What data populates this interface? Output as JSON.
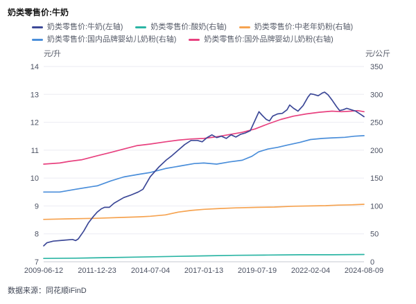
{
  "title": "奶类零售价:牛奶",
  "source": "数据来源：同花顺iFinD",
  "chart_data": {
    "type": "line",
    "title": "奶类零售价:牛奶",
    "grid": true,
    "legend_position": "top",
    "points_format": "each point is [t, value]; t is the fractional position along the time axis from 2009-06-12 (t=0) to 2024-08-09 (t=1); value is in the unit of that series' axis",
    "x_axis": {
      "type": "time",
      "start": "2009-06-12",
      "end": "2024-08-09",
      "tick_labels": [
        "2009-06-12",
        "2011-12-23",
        "2014-07-04",
        "2017-01-13",
        "2019-07-19",
        "2022-02-04",
        "2024-08-09"
      ]
    },
    "y_axis_left": {
      "unit": "元/升",
      "min": 7,
      "max": 14,
      "ticks": [
        14,
        13,
        12,
        11,
        10,
        9,
        8,
        7
      ]
    },
    "y_axis_right": {
      "unit": "元/公斤",
      "min": 0,
      "max": 350,
      "ticks": [
        350,
        300,
        250,
        200,
        150,
        100,
        50,
        0
      ]
    },
    "series": [
      {
        "name": "奶类零售价:牛奶(左轴)",
        "key": "milk",
        "axis": "left",
        "unit": "元/升",
        "color": "#3c4897",
        "points": [
          [
            0,
            7.57
          ],
          [
            0.01,
            7.68
          ],
          [
            0.03,
            7.74
          ],
          [
            0.06,
            7.77
          ],
          [
            0.09,
            7.8
          ],
          [
            0.1,
            7.76
          ],
          [
            0.108,
            7.82
          ],
          [
            0.125,
            8.1
          ],
          [
            0.14,
            8.4
          ],
          [
            0.155,
            8.62
          ],
          [
            0.167,
            8.78
          ],
          [
            0.18,
            8.9
          ],
          [
            0.19,
            8.95
          ],
          [
            0.205,
            8.95
          ],
          [
            0.22,
            9.1
          ],
          [
            0.25,
            9.3
          ],
          [
            0.27,
            9.38
          ],
          [
            0.295,
            9.5
          ],
          [
            0.31,
            9.6
          ],
          [
            0.333,
            10.05
          ],
          [
            0.36,
            10.4
          ],
          [
            0.383,
            10.65
          ],
          [
            0.4,
            10.8
          ],
          [
            0.42,
            11.0
          ],
          [
            0.44,
            11.2
          ],
          [
            0.46,
            11.35
          ],
          [
            0.48,
            11.35
          ],
          [
            0.495,
            11.3
          ],
          [
            0.51,
            11.45
          ],
          [
            0.525,
            11.55
          ],
          [
            0.54,
            11.45
          ],
          [
            0.555,
            11.5
          ],
          [
            0.57,
            11.42
          ],
          [
            0.585,
            11.55
          ],
          [
            0.6,
            11.47
          ],
          [
            0.615,
            11.57
          ],
          [
            0.63,
            11.62
          ],
          [
            0.645,
            11.7
          ],
          [
            0.655,
            11.95
          ],
          [
            0.665,
            12.2
          ],
          [
            0.672,
            12.38
          ],
          [
            0.682,
            12.25
          ],
          [
            0.695,
            12.1
          ],
          [
            0.705,
            12.05
          ],
          [
            0.715,
            12.22
          ],
          [
            0.73,
            12.3
          ],
          [
            0.745,
            12.32
          ],
          [
            0.76,
            12.45
          ],
          [
            0.768,
            12.62
          ],
          [
            0.78,
            12.5
          ],
          [
            0.794,
            12.4
          ],
          [
            0.81,
            12.6
          ],
          [
            0.825,
            12.9
          ],
          [
            0.833,
            13.02
          ],
          [
            0.843,
            13.0
          ],
          [
            0.857,
            12.95
          ],
          [
            0.87,
            13.05
          ],
          [
            0.877,
            13.08
          ],
          [
            0.888,
            12.98
          ],
          [
            0.9,
            12.8
          ],
          [
            0.915,
            12.55
          ],
          [
            0.924,
            12.42
          ],
          [
            0.935,
            12.45
          ],
          [
            0.946,
            12.5
          ],
          [
            0.96,
            12.45
          ],
          [
            0.974,
            12.4
          ],
          [
            0.99,
            12.28
          ],
          [
            1,
            12.2
          ]
        ]
      },
      {
        "name": "奶类零售价:酸奶(右轴)",
        "key": "yogurt",
        "axis": "right",
        "unit": "元/公斤",
        "color": "#2bb5a4",
        "points": [
          [
            0,
            6
          ],
          [
            0.1,
            6.5
          ],
          [
            0.2,
            7.5
          ],
          [
            0.3,
            8.5
          ],
          [
            0.4,
            9.5
          ],
          [
            0.5,
            10.5
          ],
          [
            0.6,
            11.5
          ],
          [
            0.7,
            12
          ],
          [
            0.8,
            12.5
          ],
          [
            0.9,
            12.5
          ],
          [
            1,
            13
          ]
        ]
      },
      {
        "name": "奶类零售价:中老年奶粉(右轴)",
        "key": "middle-aged-milk-powder",
        "axis": "right",
        "unit": "元/公斤",
        "color": "#f6a350",
        "points": [
          [
            0,
            76
          ],
          [
            0.08,
            77
          ],
          [
            0.167,
            78
          ],
          [
            0.25,
            79.5
          ],
          [
            0.3,
            80.5
          ],
          [
            0.333,
            81.5
          ],
          [
            0.38,
            84
          ],
          [
            0.42,
            89
          ],
          [
            0.46,
            92
          ],
          [
            0.5,
            94
          ],
          [
            0.55,
            95.5
          ],
          [
            0.6,
            96.5
          ],
          [
            0.67,
            97.5
          ],
          [
            0.72,
            98
          ],
          [
            0.78,
            99.5
          ],
          [
            0.833,
            100
          ],
          [
            0.88,
            100.5
          ],
          [
            0.92,
            101.5
          ],
          [
            0.96,
            102
          ],
          [
            1,
            103
          ]
        ]
      },
      {
        "name": "奶类零售价:国内品牌婴幼儿奶粉(右轴)",
        "key": "domestic-infant-formula",
        "axis": "right",
        "unit": "元/公斤",
        "color": "#4a8eda",
        "points": [
          [
            0,
            125
          ],
          [
            0.05,
            125
          ],
          [
            0.1,
            130
          ],
          [
            0.155,
            135
          ],
          [
            0.167,
            136
          ],
          [
            0.21,
            145
          ],
          [
            0.25,
            152
          ],
          [
            0.3,
            157
          ],
          [
            0.333,
            160
          ],
          [
            0.38,
            167
          ],
          [
            0.43,
            172
          ],
          [
            0.47,
            176
          ],
          [
            0.5,
            177
          ],
          [
            0.54,
            175
          ],
          [
            0.58,
            179
          ],
          [
            0.62,
            182
          ],
          [
            0.65,
            189
          ],
          [
            0.671,
            197
          ],
          [
            0.7,
            202
          ],
          [
            0.73,
            205
          ],
          [
            0.76,
            209
          ],
          [
            0.8,
            214
          ],
          [
            0.833,
            219
          ],
          [
            0.87,
            221
          ],
          [
            0.9,
            222
          ],
          [
            0.94,
            223
          ],
          [
            0.97,
            225
          ],
          [
            1,
            226
          ]
        ]
      },
      {
        "name": "奶类零售价:国外品牌婴幼儿奶粉(右轴)",
        "key": "foreign-infant-formula",
        "axis": "right",
        "unit": "元/公斤",
        "color": "#e8417f",
        "points": [
          [
            0,
            175
          ],
          [
            0.05,
            177
          ],
          [
            0.08,
            180
          ],
          [
            0.12,
            183
          ],
          [
            0.167,
            190
          ],
          [
            0.21,
            196
          ],
          [
            0.25,
            202
          ],
          [
            0.29,
            208
          ],
          [
            0.333,
            211
          ],
          [
            0.38,
            215
          ],
          [
            0.42,
            218
          ],
          [
            0.46,
            220
          ],
          [
            0.5,
            221
          ],
          [
            0.54,
            224
          ],
          [
            0.58,
            228
          ],
          [
            0.62,
            232
          ],
          [
            0.66,
            238
          ],
          [
            0.7,
            247
          ],
          [
            0.74,
            255
          ],
          [
            0.78,
            261
          ],
          [
            0.82,
            265
          ],
          [
            0.86,
            268
          ],
          [
            0.9,
            270
          ],
          [
            0.93,
            269
          ],
          [
            0.96,
            270
          ],
          [
            0.98,
            271
          ],
          [
            1,
            269
          ]
        ]
      }
    ]
  }
}
